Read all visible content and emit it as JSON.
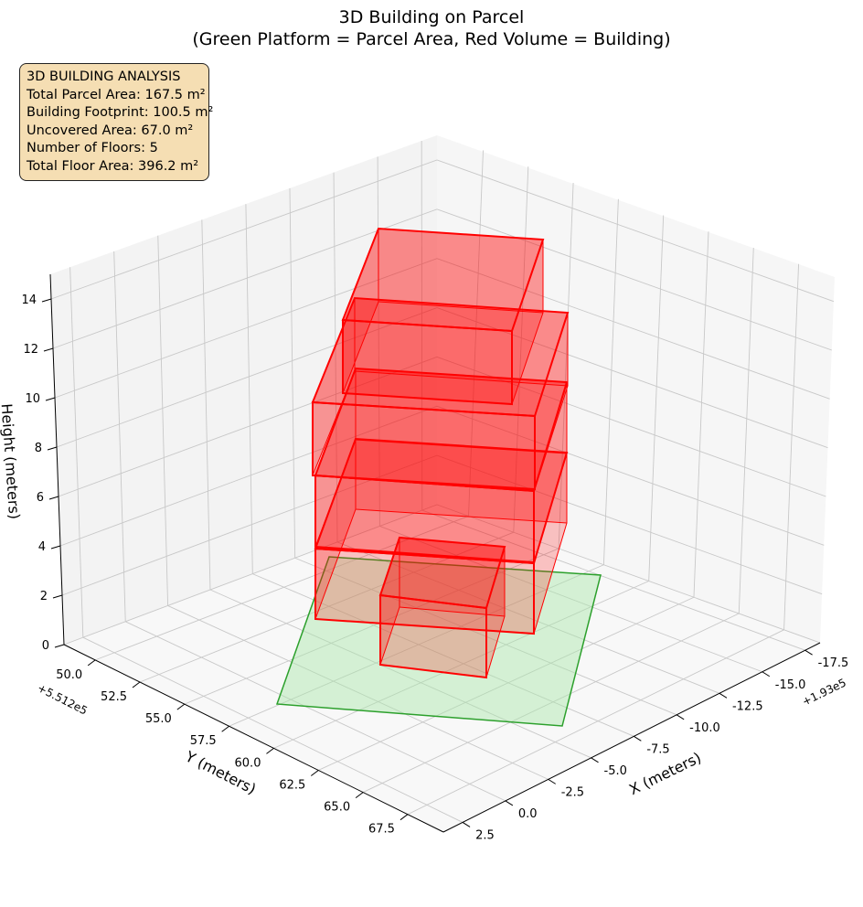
{
  "chart_data": {
    "type": "3d-bar",
    "title": "3D Building on Parcel",
    "subtitle": "(Green Platform = Parcel Area, Red Volume = Building)",
    "xlabel": "X (meters)",
    "ylabel": "Y (meters)",
    "zlabel": "Height (meters)",
    "x_offset": "+1.93e5",
    "y_offset": "+5.512e5",
    "x_ticks": [
      "-17.5",
      "-15.0",
      "-12.5",
      "-10.0",
      "-7.5",
      "-5.0",
      "-2.5",
      "0.0",
      "2.5"
    ],
    "y_ticks": [
      "50.0",
      "52.5",
      "55.0",
      "57.5",
      "60.0",
      "62.5",
      "65.0",
      "67.5"
    ],
    "z_ticks": [
      "0",
      "2",
      "4",
      "6",
      "8",
      "10",
      "12",
      "14"
    ],
    "colors": {
      "parcel": "#2ca02c",
      "building": "#ff0000"
    },
    "parcel": {
      "area_m2": 167.5
    },
    "floors": [
      {
        "index": 1,
        "z_base": 0,
        "height": 3
      },
      {
        "index": 2,
        "z_base": 3,
        "height": 3
      },
      {
        "index": 3,
        "z_base": 6,
        "height": 3
      },
      {
        "index": 4,
        "z_base": 9,
        "height": 3
      },
      {
        "index": 5,
        "z_base": 12,
        "height": 3
      }
    ]
  },
  "info_box": {
    "heading": "3D BUILDING ANALYSIS",
    "lines": [
      "Total Parcel Area: 167.5 m²",
      "Building Footprint: 100.5 m²",
      "Uncovered Area: 67.0 m²",
      "Number of Floors: 5",
      "Total Floor Area: 396.2 m²"
    ]
  }
}
